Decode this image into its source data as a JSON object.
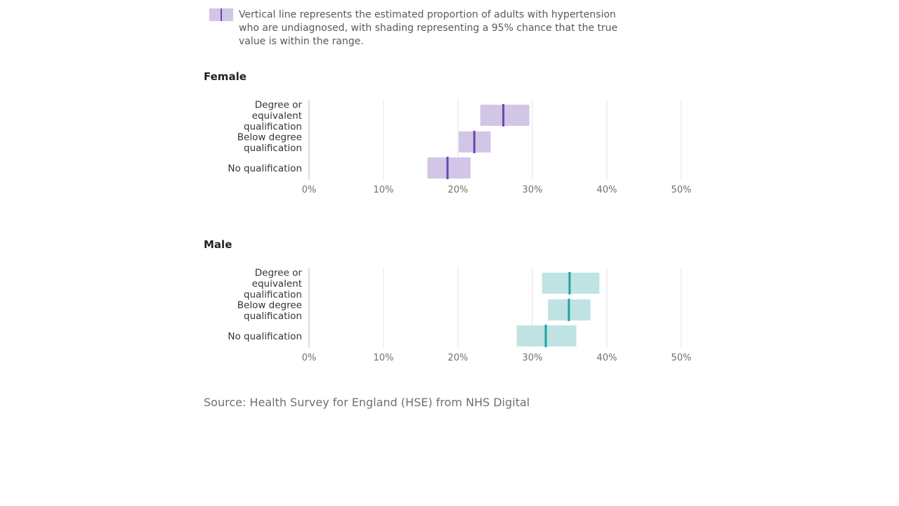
{
  "legend": {
    "text": "Vertical line represents the estimated proportion of adults with hypertension who are undiagnosed, with shading representing a 95% chance that the true value is within the range.",
    "swatch_fill": "#d1c6e6",
    "swatch_line": "#6b46b0"
  },
  "source": "Source: Health Survey for England (HSE) from NHS Digital",
  "chart_data": [
    {
      "type": "bar",
      "title": "Female",
      "categories": [
        "Degree or equivalent qualification",
        "Below degree qualification",
        "No qualification"
      ],
      "category_lines": [
        [
          "Degree or",
          "equivalent",
          "qualification"
        ],
        [
          "Below degree",
          "qualification"
        ],
        [
          "No qualification"
        ]
      ],
      "values": [
        26.1,
        22.2,
        18.6
      ],
      "ci_low": [
        23.0,
        20.1,
        15.9
      ],
      "ci_high": [
        29.6,
        24.4,
        21.7
      ],
      "xlim": [
        0,
        50
      ],
      "xticks": [
        0,
        10,
        20,
        30,
        40,
        50
      ],
      "xtick_labels": [
        "0%",
        "10%",
        "20%",
        "30%",
        "40%",
        "50%"
      ],
      "grid": true,
      "fill_color": "#d1c6e6",
      "line_color": "#6b46b0"
    },
    {
      "type": "bar",
      "title": "Male",
      "categories": [
        "Degree or equivalent qualification",
        "Below degree qualification",
        "No qualification"
      ],
      "category_lines": [
        [
          "Degree or",
          "equivalent",
          "qualification"
        ],
        [
          "Below degree",
          "qualification"
        ],
        [
          "No qualification"
        ]
      ],
      "values": [
        35.0,
        34.9,
        31.8
      ],
      "ci_low": [
        31.3,
        32.1,
        27.9
      ],
      "ci_high": [
        39.0,
        37.8,
        35.9
      ],
      "xlim": [
        0,
        50
      ],
      "xticks": [
        0,
        10,
        20,
        30,
        40,
        50
      ],
      "xtick_labels": [
        "0%",
        "10%",
        "20%",
        "30%",
        "40%",
        "50%"
      ],
      "grid": true,
      "fill_color": "#bfe3e3",
      "line_color": "#26a0a0"
    }
  ]
}
